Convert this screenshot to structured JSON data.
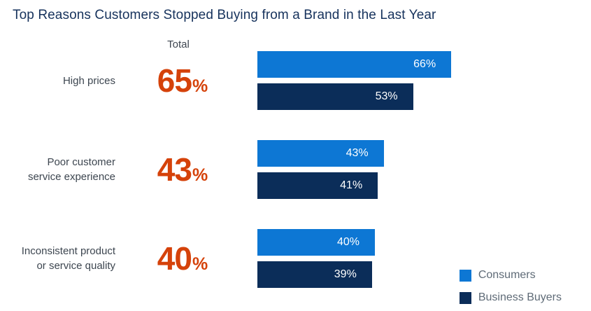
{
  "title": "Top Reasons Customers Stopped Buying from a Brand in the Last Year",
  "total_header": "Total",
  "percent_sign": "%",
  "rows": [
    {
      "category_lines": [
        "High prices"
      ],
      "total": "65",
      "bars": [
        {
          "series": "Consumers",
          "label": "66%"
        },
        {
          "series": "Business Buyers",
          "label": "53%"
        }
      ]
    },
    {
      "category_lines": [
        "Poor customer",
        "service experience"
      ],
      "total": "43",
      "bars": [
        {
          "series": "Consumers",
          "label": "43%"
        },
        {
          "series": "Business Buyers",
          "label": "41%"
        }
      ]
    },
    {
      "category_lines": [
        "Inconsistent product",
        "or service quality"
      ],
      "total": "40",
      "bars": [
        {
          "series": "Consumers",
          "label": "40%"
        },
        {
          "series": "Business Buyers",
          "label": "39%"
        }
      ]
    }
  ],
  "legend": [
    {
      "label": "Consumers",
      "color": "#0d77d4"
    },
    {
      "label": "Business Buyers",
      "color": "#0b2d59"
    }
  ],
  "colors": {
    "consumers_bar": "#0d77d4",
    "business_buyers_bar": "#0b2d59",
    "total_accent": "#d5420a",
    "title_text": "#16325c",
    "category_text": "#3d4650",
    "legend_text": "#5f6b77",
    "bar_label_text": "#ffffff",
    "background": "#ffffff"
  },
  "chart_data": {
    "type": "bar",
    "orientation": "horizontal",
    "title": "Top Reasons Customers Stopped Buying from a Brand in the Last Year",
    "categories": [
      "High prices",
      "Poor customer service experience",
      "Inconsistent product or service quality"
    ],
    "totals": [
      65,
      43,
      40
    ],
    "series": [
      {
        "name": "Consumers",
        "values": [
          66,
          43,
          40
        ],
        "color": "#0d77d4"
      },
      {
        "name": "Business Buyers",
        "values": [
          53,
          41,
          39
        ],
        "color": "#0b2d59"
      }
    ],
    "value_unit": "%",
    "value_labels_inside_bars": true,
    "axis_visible": false,
    "grid": false,
    "xlim": [
      0,
      100
    ],
    "legend_position": "bottom-right"
  }
}
